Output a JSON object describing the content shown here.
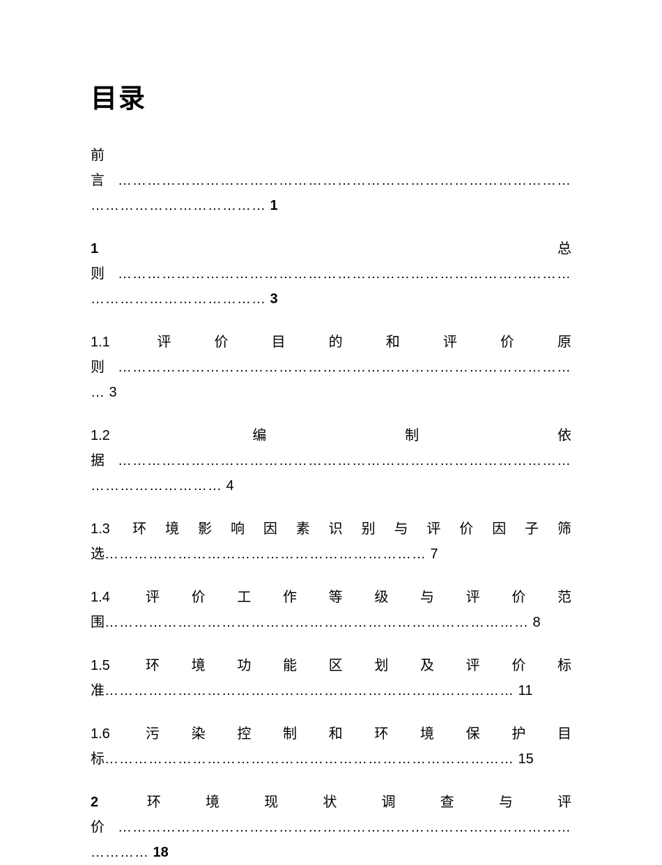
{
  "title": "目录",
  "entries": [
    {
      "label": "前言",
      "label_bold": false,
      "dots": "…………………………………………………………………………………………………………………",
      "page": "1",
      "page_bold": true
    },
    {
      "label": "1 总则",
      "label_bold": true,
      "dots": "…………………………………………………………………………………………………………………",
      "page": "3",
      "page_bold": true
    },
    {
      "label": "1.1 评价目的和评价原则",
      "label_bold": false,
      "dots": "……………………………………………………………………………………",
      "page": "3",
      "page_bold": false
    },
    {
      "label": "1.2 编制依据",
      "label_bold": false,
      "dots": "…………………………………………………………………………………………………………",
      "page": "4",
      "page_bold": false
    },
    {
      "label": "1.3 环境影响因素识别与评价因子筛选",
      "label_bold": false,
      "dots": "…………………………………………………………",
      "page": "7",
      "page_bold": false
    },
    {
      "label": "1.4 评价工作等级与评价范围",
      "label_bold": false,
      "dots": "……………………………………………………………………………",
      "page": "8",
      "page_bold": false
    },
    {
      "label": "1.5 环境功能区划及评价标准",
      "label_bold": false,
      "dots": "…………………………………………………………………………",
      "page": "11",
      "page_bold": false
    },
    {
      "label": "1.6 污染控制和环境保护目标",
      "label_bold": false,
      "dots": "…………………………………………………………………………",
      "page": "15",
      "page_bold": false
    },
    {
      "label": "2 环境现状调查与评价",
      "label_bold": true,
      "dots": "……………………………………………………………………………………………",
      "page": "18",
      "page_bold": true
    }
  ]
}
